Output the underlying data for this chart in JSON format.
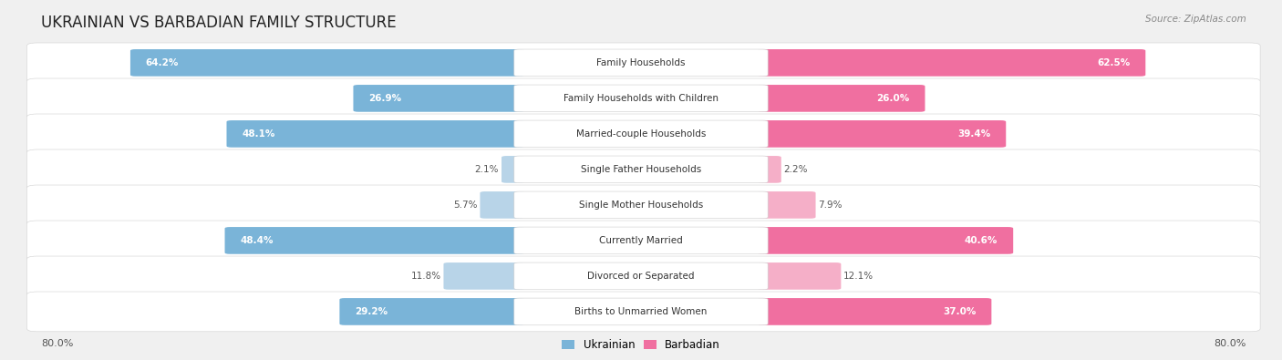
{
  "title": "Ukrainian vs Barbadian Family Structure",
  "source": "Source: ZipAtlas.com",
  "categories": [
    "Family Households",
    "Family Households with Children",
    "Married-couple Households",
    "Single Father Households",
    "Single Mother Households",
    "Currently Married",
    "Divorced or Separated",
    "Births to Unmarried Women"
  ],
  "ukrainian_values": [
    64.2,
    26.9,
    48.1,
    2.1,
    5.7,
    48.4,
    11.8,
    29.2
  ],
  "barbadian_values": [
    62.5,
    26.0,
    39.4,
    2.2,
    7.9,
    40.6,
    12.1,
    37.0
  ],
  "ukr_strong": "#7ab4d8",
  "ukr_light": "#b8d4e8",
  "barb_strong": "#f06fa0",
  "barb_light": "#f5afc8",
  "max_value": 80.0,
  "bg_color": "#f0f0f0",
  "row_color": "#ffffff",
  "row_border": "#d0d0d0",
  "title_fontsize": 12,
  "label_fontsize": 7.5,
  "value_fontsize": 7.5,
  "axis_label": "80.0%"
}
